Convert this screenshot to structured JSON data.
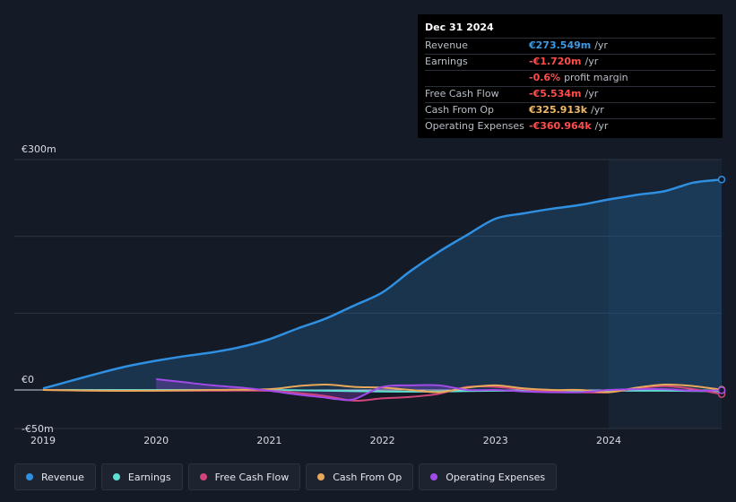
{
  "tooltip": {
    "date": "Dec 31 2024",
    "rows": [
      {
        "key": "Revenue",
        "value": "€273.549m",
        "unit": "/yr",
        "color": "#3b9ae1"
      },
      {
        "key": "Earnings",
        "value": "-€1.720m",
        "unit": "/yr",
        "color": "#ff4d4d"
      },
      {
        "key": "",
        "value": "-0.6%",
        "unit": "profit margin",
        "color": "#ff4d4d"
      },
      {
        "key": "Free Cash Flow",
        "value": "-€5.534m",
        "unit": "/yr",
        "color": "#ff4d4d"
      },
      {
        "key": "Cash From Op",
        "value": "€325.913k",
        "unit": "/yr",
        "color": "#f0b96b"
      },
      {
        "key": "Operating Expenses",
        "value": "-€360.964k",
        "unit": "/yr",
        "color": "#ff4d4d"
      }
    ]
  },
  "legend": [
    {
      "label": "Revenue",
      "color": "#2f8fe0"
    },
    {
      "label": "Earnings",
      "color": "#5fe0d4"
    },
    {
      "label": "Free Cash Flow",
      "color": "#d1457a"
    },
    {
      "label": "Cash From Op",
      "color": "#e8a85a"
    },
    {
      "label": "Operating Expenses",
      "color": "#a24be8"
    }
  ],
  "chart_data": {
    "type": "line",
    "y_tick_labels": [
      "€300m",
      "€0",
      "-€50m"
    ],
    "ylim": [
      -50,
      300
    ],
    "xlim": [
      2019.0,
      2025.0
    ],
    "x_ticks": [
      2019,
      2020,
      2021,
      2022,
      2023,
      2024
    ],
    "x_tick_labels": [
      "2019",
      "2020",
      "2021",
      "2022",
      "2023",
      "2024"
    ],
    "forecast_shade_start": 2024.0,
    "grid": true,
    "series": [
      {
        "name": "Revenue",
        "color": "#2f8fe0",
        "fill": true,
        "x": [
          2019.0,
          2019.25,
          2019.5,
          2019.75,
          2020.0,
          2020.25,
          2020.5,
          2020.75,
          2021.0,
          2021.25,
          2021.5,
          2021.75,
          2022.0,
          2022.25,
          2022.5,
          2022.75,
          2023.0,
          2023.25,
          2023.5,
          2023.75,
          2024.0,
          2024.25,
          2024.5,
          2024.75,
          2025.0
        ],
        "y": [
          2,
          12,
          22,
          31,
          38,
          44,
          49,
          56,
          66,
          80,
          93,
          110,
          127,
          155,
          180,
          202,
          223,
          230,
          236,
          241,
          248,
          254,
          259,
          270,
          274
        ]
      },
      {
        "name": "Earnings",
        "color": "#5fe0d4",
        "fill": false,
        "x": [
          2019.0,
          2019.5,
          2020.0,
          2020.5,
          2021.0,
          2021.5,
          2022.0,
          2022.5,
          2023.0,
          2023.5,
          2024.0,
          2024.5,
          2025.0
        ],
        "y": [
          0,
          0,
          0,
          0,
          0,
          -1,
          -2,
          -2,
          -1,
          -1,
          -1,
          -1,
          -1.7
        ]
      },
      {
        "name": "Free Cash Flow",
        "color": "#d1457a",
        "fill": false,
        "x": [
          2019.0,
          2019.5,
          2020.0,
          2020.5,
          2021.0,
          2021.25,
          2021.5,
          2021.75,
          2022.0,
          2022.25,
          2022.5,
          2022.75,
          2023.0,
          2023.25,
          2023.5,
          2023.75,
          2024.0,
          2024.25,
          2024.5,
          2024.75,
          2025.0
        ],
        "y": [
          0,
          -1,
          -1,
          -1,
          -1,
          -4,
          -8,
          -14,
          -11,
          -9,
          -5,
          4,
          4,
          1,
          -2,
          -3,
          -3,
          2,
          5,
          1,
          -5.5
        ]
      },
      {
        "name": "Cash From Op",
        "color": "#e8a85a",
        "fill": false,
        "x": [
          2019.0,
          2019.5,
          2020.0,
          2020.5,
          2021.0,
          2021.25,
          2021.5,
          2021.75,
          2022.0,
          2022.25,
          2022.5,
          2022.75,
          2023.0,
          2023.25,
          2023.5,
          2023.75,
          2024.0,
          2024.25,
          2024.5,
          2024.75,
          2025.0
        ],
        "y": [
          0,
          -1,
          -1,
          0,
          1,
          5,
          7,
          4,
          3,
          0,
          -3,
          3,
          6,
          2,
          0,
          0,
          -3,
          3,
          7,
          5,
          0.3
        ]
      },
      {
        "name": "Operating Expenses",
        "color": "#a24be8",
        "fill": true,
        "x": [
          2020.0,
          2020.25,
          2020.5,
          2020.75,
          2021.0,
          2021.25,
          2021.5,
          2021.6,
          2021.75,
          2022.0,
          2022.25,
          2022.5,
          2022.75,
          2023.0,
          2023.25,
          2023.5,
          2023.75,
          2024.0,
          2024.25,
          2024.5,
          2024.75,
          2025.0
        ],
        "y": [
          14,
          10,
          6,
          3,
          -1,
          -6,
          -10,
          -12,
          -12,
          4,
          6,
          6,
          0,
          0,
          -2,
          -3,
          -3,
          0,
          1,
          1,
          -1,
          -0.4
        ]
      }
    ]
  }
}
